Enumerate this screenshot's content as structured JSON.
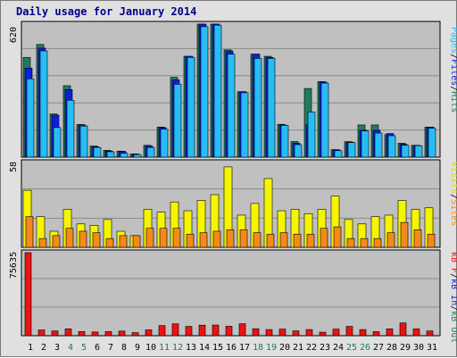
{
  "title": "Daily usage for January 2014",
  "colors": {
    "hits": "#1f7d5f",
    "files": "#0b1fe0",
    "pages": "#26bdf5",
    "visits": "#f5f500",
    "sites": "#f58a1a",
    "kbytes": "#ee1111",
    "weekday_label": "#000000",
    "weekend_label": "#1a7f4a",
    "panel_bg": "#c0c0c0"
  },
  "legends": {
    "top": [
      "Pages",
      "Files",
      "Hits"
    ],
    "middle": [
      "Visits",
      "Sites"
    ],
    "bottom": [
      "kB F",
      "kB In",
      "kB Out"
    ],
    "separator": "/"
  },
  "chart_data": [
    {
      "type": "bar",
      "panel": "hits-files-pages",
      "max_label": "620",
      "ylim": [
        0,
        620
      ],
      "categories": [
        "1",
        "2",
        "3",
        "4",
        "5",
        "6",
        "7",
        "8",
        "9",
        "10",
        "11",
        "12",
        "13",
        "14",
        "15",
        "16",
        "17",
        "18",
        "19",
        "20",
        "21",
        "22",
        "23",
        "24",
        "25",
        "26",
        "27",
        "28",
        "29",
        "30",
        "31"
      ],
      "weekend_days": [
        4,
        5,
        11,
        12,
        18,
        19,
        25,
        26
      ],
      "series": [
        {
          "name": "Hits",
          "values": [
            465,
            525,
            201,
            333,
            152,
            52,
            32,
            28,
            15,
            55,
            140,
            372,
            470,
            620,
            620,
            500,
            305,
            480,
            470,
            153,
            73,
            320,
            352,
            35,
            72,
            150,
            150,
            105,
            65,
            55,
            140
          ]
        },
        {
          "name": "Files",
          "values": [
            415,
            508,
            196,
            315,
            150,
            48,
            28,
            27,
            14,
            52,
            138,
            360,
            470,
            620,
            620,
            495,
            305,
            480,
            465,
            150,
            65,
            150,
            350,
            34,
            70,
            125,
            125,
            110,
            60,
            55,
            140
          ]
        },
        {
          "name": "Pages",
          "values": [
            365,
            495,
            138,
            265,
            145,
            45,
            25,
            18,
            12,
            45,
            130,
            340,
            465,
            608,
            615,
            480,
            300,
            460,
            460,
            148,
            58,
            210,
            345,
            30,
            68,
            122,
            112,
            100,
            55,
            53,
            135
          ]
        }
      ]
    },
    {
      "type": "bar",
      "panel": "visits-sites",
      "max_label": "58",
      "ylim": [
        0,
        58
      ],
      "categories": [
        "1",
        "2",
        "3",
        "4",
        "5",
        "6",
        "7",
        "8",
        "9",
        "10",
        "11",
        "12",
        "13",
        "14",
        "15",
        "16",
        "17",
        "18",
        "19",
        "20",
        "21",
        "22",
        "23",
        "24",
        "25",
        "26",
        "27",
        "28",
        "29",
        "30",
        "31"
      ],
      "series": [
        {
          "name": "Visits",
          "values": [
            39,
            21,
            11,
            26,
            16,
            15,
            19,
            11,
            8,
            26,
            24,
            31,
            25,
            32,
            36,
            55,
            22,
            30,
            47,
            25,
            26,
            23,
            26,
            35,
            19,
            16,
            21,
            22,
            32,
            26,
            27
          ]
        },
        {
          "name": "Sites",
          "values": [
            21,
            6,
            8,
            13,
            11,
            10,
            6,
            8,
            8,
            13,
            13,
            13,
            9,
            10,
            11,
            12,
            12,
            10,
            9,
            10,
            9,
            9,
            13,
            14,
            6,
            6,
            6,
            10,
            17,
            12,
            9
          ]
        }
      ]
    },
    {
      "type": "bar",
      "panel": "kbytes",
      "max_label": "75635",
      "ylim": [
        0,
        75635
      ],
      "categories": [
        "1",
        "2",
        "3",
        "4",
        "5",
        "6",
        "7",
        "8",
        "9",
        "10",
        "11",
        "12",
        "13",
        "14",
        "15",
        "16",
        "17",
        "18",
        "19",
        "20",
        "21",
        "22",
        "23",
        "24",
        "25",
        "26",
        "27",
        "28",
        "29",
        "30",
        "31"
      ],
      "series": [
        {
          "name": "kB F",
          "values": [
            75635,
            5200,
            4300,
            6200,
            3800,
            3400,
            3700,
            4200,
            2800,
            5300,
            9200,
            10800,
            8500,
            9600,
            9700,
            8600,
            10900,
            6300,
            5600,
            6000,
            4400,
            5600,
            3200,
            6000,
            8500,
            5600,
            3700,
            6200,
            11600,
            6200,
            4300
          ]
        }
      ]
    }
  ]
}
